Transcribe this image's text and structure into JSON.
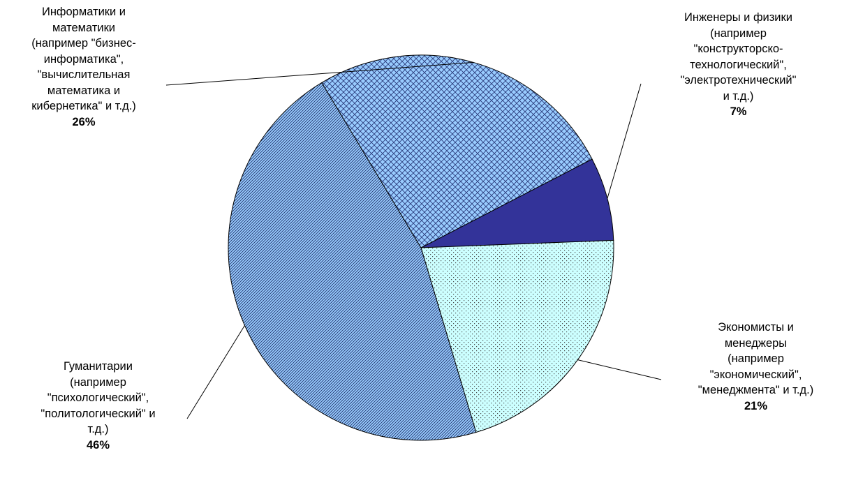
{
  "chart_data": {
    "type": "pie",
    "title": "",
    "slices": [
      {
        "label": "Инженеры и физики (например \"конструкторско-технологический\", \"электротехнический\" и т.д.)",
        "lines": [
          "Инженеры и физики",
          "(например",
          "\"конструкторско-",
          "технологический\",",
          "\"электротехнический\"",
          "и т.д.)"
        ],
        "value": 7,
        "value_label": "7%",
        "color": "#333399",
        "pattern": "solid"
      },
      {
        "label": "Экономисты и менеджеры (например \"экономический\", \"менеджмента\" и т.д.)",
        "lines": [
          "Экономисты и",
          "менеджеры",
          "(например",
          "\"экономический\",",
          "\"менеджмента\" и т.д.)"
        ],
        "value": 21,
        "value_label": "21%",
        "color": "#ccffff",
        "pattern": "dots"
      },
      {
        "label": "Гуманитарии (например \"психологический\", \"политологический\" и т.д.)",
        "lines": [
          "Гуманитарии",
          "(например",
          "\"психологический\",",
          "\"политологический\" и",
          "т.д.)"
        ],
        "value": 46,
        "value_label": "46%",
        "color": "#99ccff",
        "pattern": "diagonal"
      },
      {
        "label": "Информатики и математики (например \"бизнес-информатика\", \"вычислительная математика и кибернетика\" и т.д.)",
        "lines": [
          "Информатики и",
          "математики",
          "(например \"бизнес-",
          "информатика\",",
          "\"вычислительная",
          "математика и",
          "кибернетика\" и т.д.)"
        ],
        "value": 26,
        "value_label": "26%",
        "color": "#99ccff",
        "pattern": "crosshatch"
      }
    ]
  }
}
